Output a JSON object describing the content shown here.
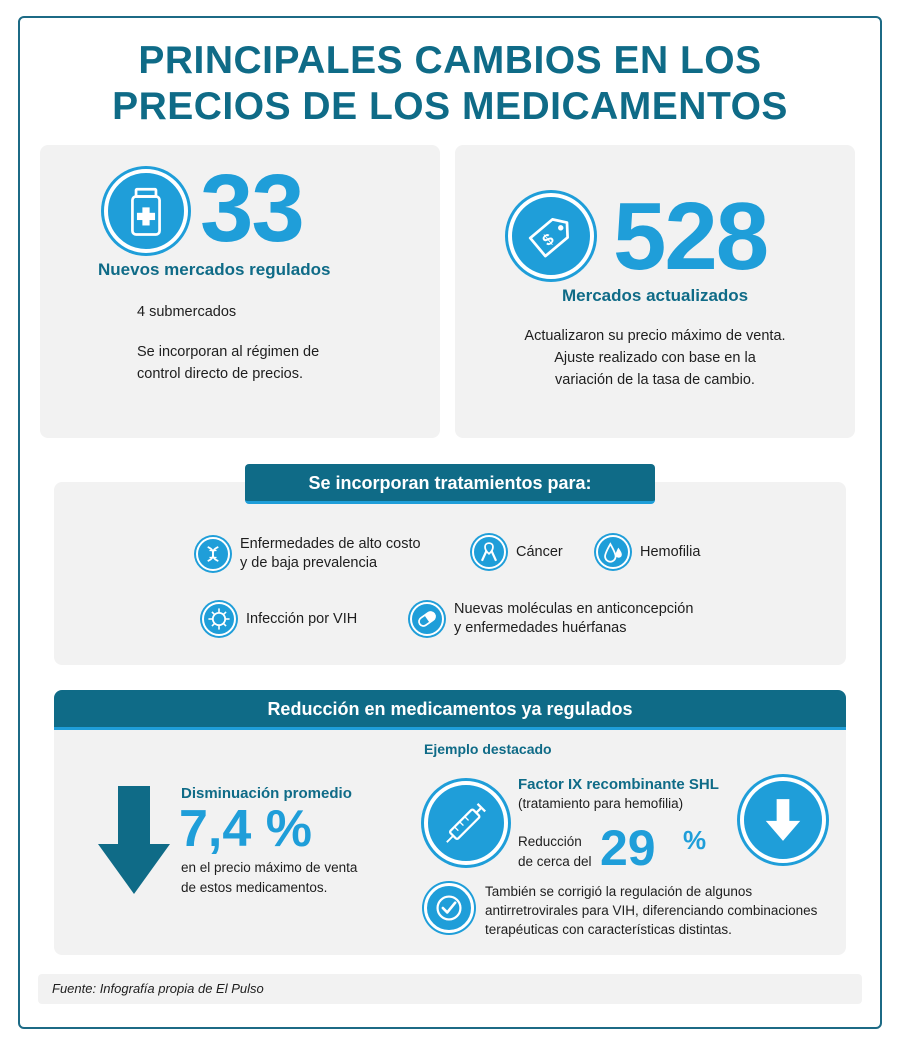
{
  "title": {
    "line1": "PRINCIPALES CAMBIOS EN LOS",
    "line2": "PRECIOS DE LOS MEDICAMENTOS"
  },
  "new_markets": {
    "number": "33",
    "subtitle": "Nuevos mercados regulados",
    "detail1": "4 submercados",
    "detail2_line1": "Se incorporan al régimen de",
    "detail2_line2": "control directo de precios.",
    "icon": "medicine-bottle-icon"
  },
  "updated_markets": {
    "number": "528",
    "subtitle": "Mercados actualizados",
    "line1": "Actualizaron su precio máximo de venta.",
    "line2": "Ajuste realizado con base en la",
    "line3": "variación de la tasa de cambio.",
    "icon": "price-tag-icon"
  },
  "treatments": {
    "header": "Se incorporan tratamientos para:",
    "items": [
      {
        "line1": "Enfermedades de alto costo",
        "line2": "y de baja prevalencia",
        "icon": "dna-icon"
      },
      {
        "line1": "Cáncer",
        "line2": "",
        "icon": "ribbon-icon"
      },
      {
        "line1": "Hemofilia",
        "line2": "",
        "icon": "blood-drop-icon"
      },
      {
        "line1": "Infección por VIH",
        "line2": "",
        "icon": "virus-icon"
      },
      {
        "line1": "Nuevas moléculas en anticoncepción",
        "line2": "y enfermedades huérfanas",
        "icon": "pill-icon"
      }
    ]
  },
  "reduction": {
    "header": "Reducción en medicamentos ya regulados",
    "avg_label": "Disminuación promedio",
    "avg_value": "7,4 %",
    "avg_desc_line1": "en el precio máximo de venta",
    "avg_desc_line2": "de estos medicamentos.",
    "example_label": "Ejemplo destacado",
    "drug_name": "Factor IX recombinante SHL",
    "drug_note": "(tratamiento para hemofilia)",
    "reduction_line1": "Reducción",
    "reduction_line2": "de cerca del",
    "reduction_value": "29",
    "reduction_unit": "%",
    "note_line1": "También se corrigió la regulación de algunos",
    "note_line2": "antirretrovirales para VIH, diferenciando combinaciones",
    "note_line3": "terapéuticas con características distintas."
  },
  "footer": "Fuente: Infografía propia de El Pulso",
  "colors": {
    "dark_teal": "#0f6b87",
    "accent_blue": "#1f9ed9",
    "panel_gray": "#f2f2f2"
  }
}
